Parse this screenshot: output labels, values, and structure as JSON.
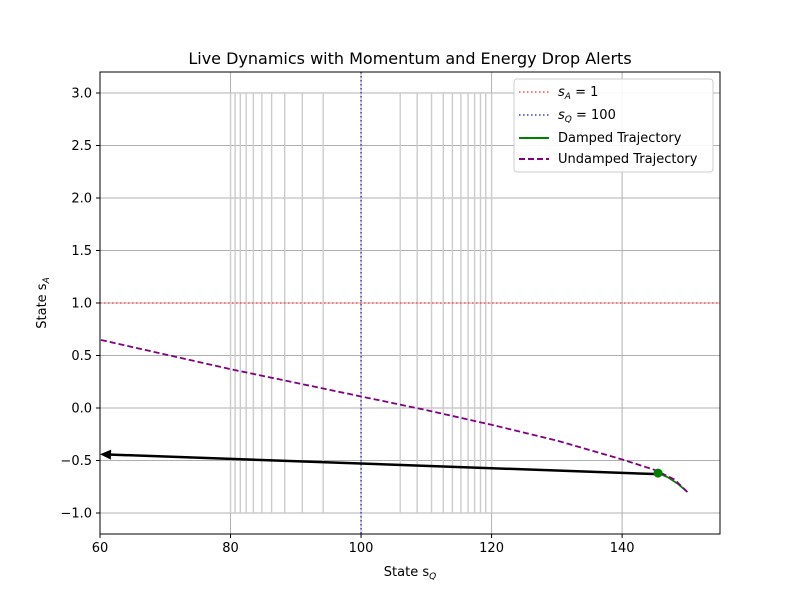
{
  "chart_data": {
    "type": "line",
    "title": "Live Dynamics with Momentum and Energy Drop Alerts",
    "xlabel": {
      "main": "State s",
      "sub": "Q"
    },
    "ylabel": {
      "main": "State s",
      "sub": "A"
    },
    "xlim": [
      60,
      155
    ],
    "ylim": [
      -1.2,
      3.2
    ],
    "x_ticks": [
      60,
      80,
      100,
      120,
      140
    ],
    "y_ticks": [
      -1.0,
      -0.5,
      0.0,
      0.5,
      1.0,
      1.5,
      2.0,
      2.5,
      3.0
    ],
    "x_tick_labels": [
      "60",
      "80",
      "100",
      "120",
      "140"
    ],
    "y_tick_labels": [
      "−1.0",
      "−0.5",
      "0.0",
      "0.5",
      "1.0",
      "1.5",
      "2.0",
      "2.5",
      "3.0"
    ],
    "grid": true,
    "legend_position": "top-right",
    "reference_lines": [
      {
        "orientation": "horizontal",
        "value": 1,
        "color": "#ff4d4d",
        "style": "dotted",
        "label_var": "s",
        "label_sub": "A",
        "label_rest": " = 1"
      },
      {
        "orientation": "vertical",
        "value": 100,
        "color": "#3a3ad6",
        "style": "dotted",
        "label_var": "s",
        "label_sub": "Q",
        "label_rest": " = 100"
      }
    ],
    "series": [
      {
        "name": "Damped Trajectory",
        "color": "#008000",
        "style": "solid",
        "points": [
          [
            150,
            -0.8
          ],
          [
            148.5,
            -0.72
          ],
          [
            147,
            -0.66
          ],
          [
            145.5,
            -0.62
          ]
        ]
      },
      {
        "name": "Undamped Trajectory",
        "color": "#800080",
        "style": "dashed",
        "points": [
          [
            150,
            -0.8
          ],
          [
            148,
            -0.68
          ],
          [
            145,
            -0.59
          ],
          [
            140,
            -0.49
          ],
          [
            130,
            -0.31
          ],
          [
            120,
            -0.16
          ],
          [
            110,
            -0.02
          ],
          [
            100,
            0.11
          ],
          [
            90,
            0.24
          ],
          [
            80,
            0.37
          ],
          [
            70,
            0.51
          ],
          [
            60,
            0.65
          ]
        ]
      }
    ],
    "momentum_arrow": {
      "color": "#000000",
      "from": [
        145.5,
        -0.63
      ],
      "to": [
        60,
        -0.44
      ]
    },
    "current_marker": {
      "x": 145.5,
      "y": -0.62,
      "color": "#008000"
    },
    "contour_lines_x": [
      80,
      80.7,
      81.5,
      82.4,
      83.5,
      84.8,
      86.3,
      88.3,
      91.0,
      94.2,
      106.0,
      108.6,
      110.8,
      112.6,
      114.0,
      115.3,
      116.4,
      117.4,
      118.3,
      119.1,
      120
    ],
    "contour_color": "#cccccc",
    "contour_range": [
      -1.0,
      3.0
    ]
  }
}
